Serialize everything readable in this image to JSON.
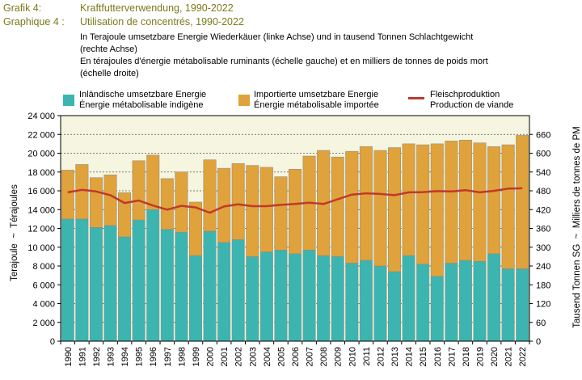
{
  "header": {
    "label_de": "Grafik 4:",
    "title_de": "Kraftfutterverwendung, 1990-2022",
    "label_fr": "Graphique 4 :",
    "title_fr": "Utilisation de concentrés, 1990-2022",
    "desc_de_1": "In Terajoule umsetzbare Energie Wiederkäuer (linke Achse) und in tausend Tonnen Schlachtgewicht",
    "desc_de_2": "(rechte Achse)",
    "desc_fr_1": "En térajoules d'énergie métabolisable ruminants (échelle gauche) et en milliers de tonnes de poids mort",
    "desc_fr_2": "(échelle droite)"
  },
  "colors": {
    "domestic": "#3cb5b0",
    "imported": "#e0a23a",
    "meat": "#c0392b",
    "plot_bg": "#f5f5e0"
  },
  "chart_data": {
    "type": "bar",
    "stacked": true,
    "categories": [
      "1990",
      "1991",
      "1992",
      "1993",
      "1994",
      "1995",
      "1996",
      "1997",
      "1998",
      "1999",
      "2000",
      "2001",
      "2002",
      "2003",
      "2004",
      "2005",
      "2006",
      "2007",
      "2008",
      "2009",
      "2010",
      "2011",
      "2012",
      "2013",
      "2014",
      "2015",
      "2016",
      "2017",
      "2018",
      "2019",
      "2020",
      "2021",
      "2022"
    ],
    "series": [
      {
        "name": "Inländische umsetzbare Energie",
        "name_fr": "Énergie métabolisable indigène",
        "axis": "left",
        "values": [
          13000,
          13000,
          12100,
          12300,
          11100,
          12900,
          14000,
          11900,
          11600,
          9100,
          11700,
          10500,
          10800,
          9000,
          9500,
          9700,
          9300,
          9700,
          9100,
          9000,
          8300,
          8600,
          8000,
          7400,
          9100,
          8200,
          6900,
          8300,
          8600,
          8500,
          9300,
          7700,
          7700
        ]
      },
      {
        "name": "Importierte umsetzbare Energie",
        "name_fr": "Énergie métabolisable importée",
        "axis": "left",
        "values": [
          5200,
          5800,
          5300,
          5400,
          4700,
          6300,
          5800,
          5400,
          6400,
          5700,
          7600,
          7900,
          8100,
          9700,
          9000,
          7800,
          9000,
          10000,
          11200,
          10600,
          11900,
          12100,
          12300,
          13200,
          11900,
          12700,
          14100,
          13000,
          12800,
          12600,
          11400,
          13200,
          14200
        ]
      },
      {
        "name": "Fleischproduktion",
        "name_fr": "Production de viande",
        "axis": "right",
        "type": "line",
        "values": [
          475,
          483,
          478,
          466,
          441,
          449,
          433,
          420,
          432,
          427,
          410,
          430,
          437,
          431,
          431,
          435,
          438,
          442,
          438,
          453,
          468,
          472,
          470,
          466,
          475,
          476,
          479,
          478,
          482,
          475,
          480,
          487,
          488
        ]
      }
    ],
    "yleft": {
      "label_de": "Terajoule",
      "sep": "~",
      "label_fr": "Térajoules",
      "lim": [
        0,
        24000
      ],
      "ticks": [
        "0",
        "2 000",
        "4 000",
        "6 000",
        "8 000",
        "10 000",
        "12 000",
        "14 000",
        "16 000",
        "18 000",
        "20 000",
        "22 000",
        "24 000"
      ]
    },
    "yright": {
      "label_de": "Tausend Tonnen SG",
      "sep": "~",
      "label_fr": "Milliers de tonnes de PM",
      "lim": [
        0,
        720
      ],
      "ticks": [
        "0",
        "60",
        "120",
        "180",
        "240",
        "300",
        "360",
        "420",
        "480",
        "540",
        "600",
        "660"
      ]
    },
    "grid": true,
    "legend_position": "top"
  }
}
